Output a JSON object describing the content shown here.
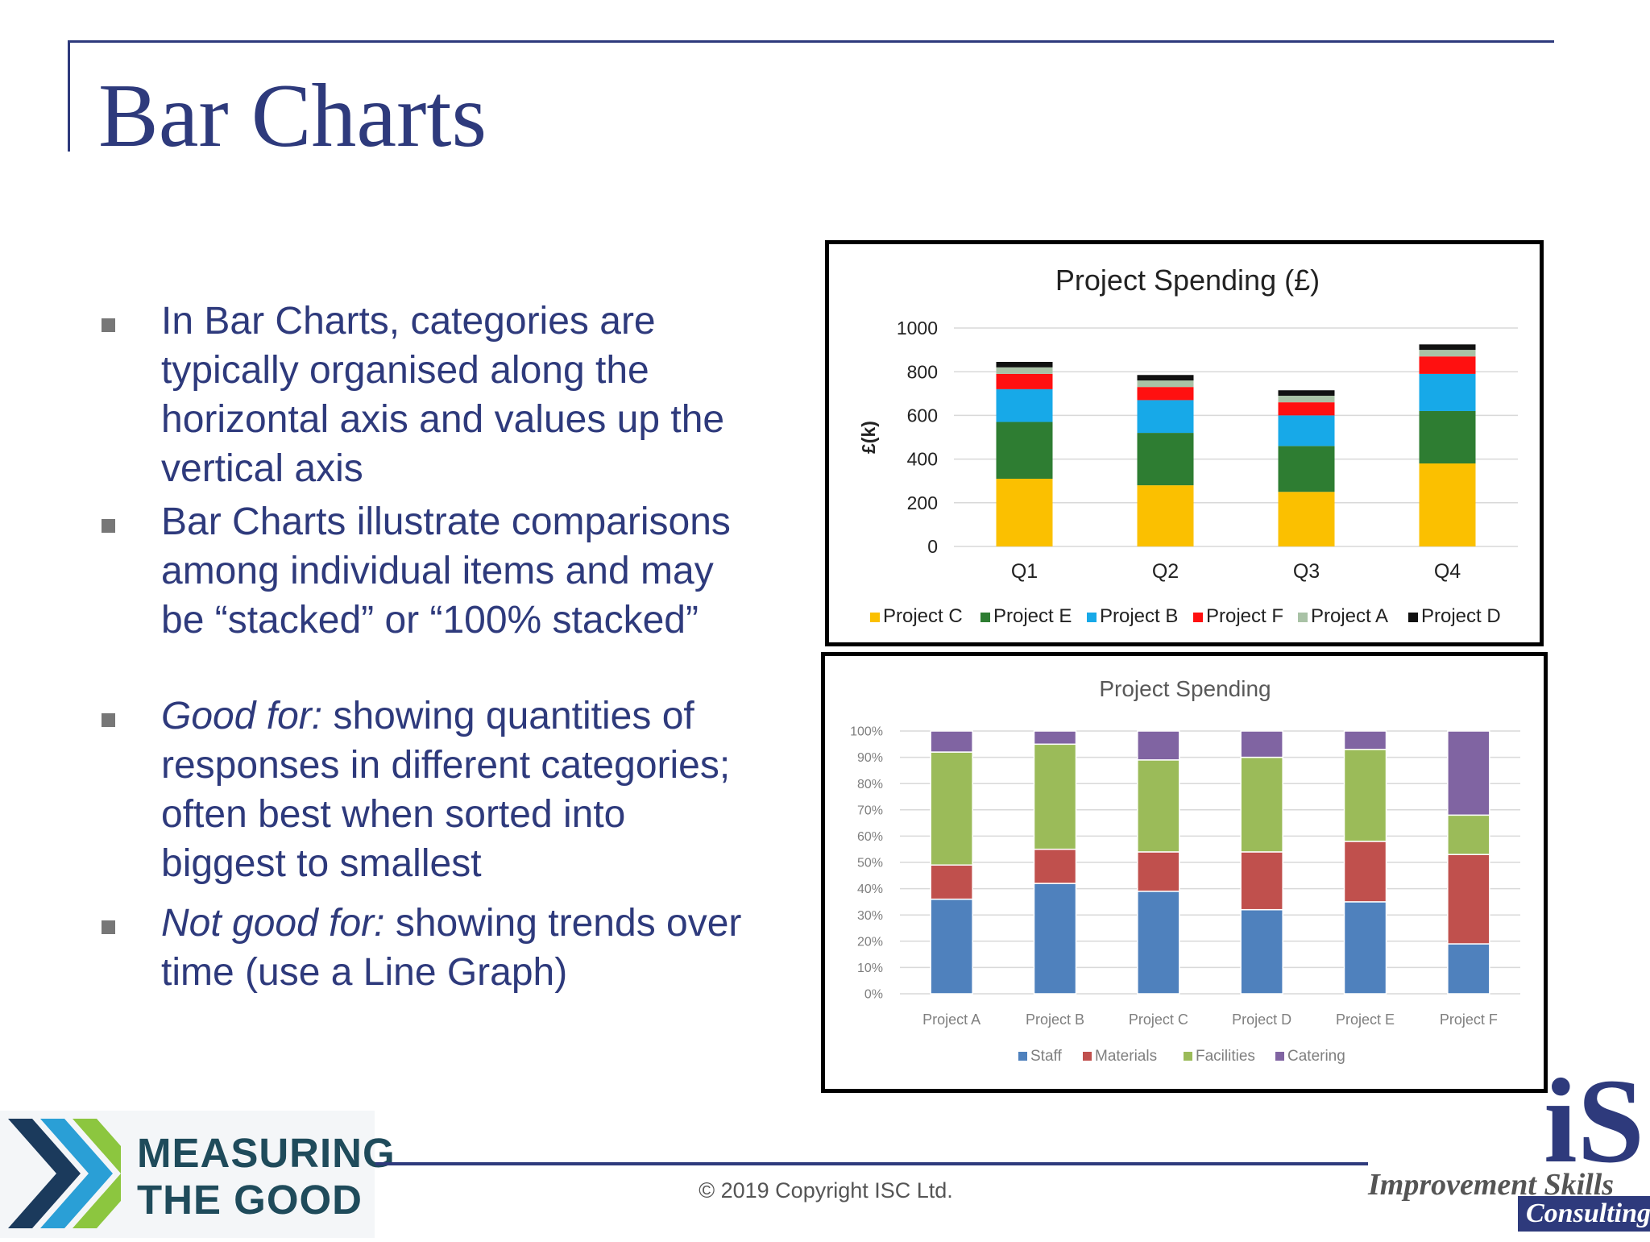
{
  "slide": {
    "title": "Bar Charts",
    "bullets": [
      {
        "lead": "",
        "text": "In Bar Charts, categories are typically organised along the horizontal axis and values up the vertical axis"
      },
      {
        "lead": "",
        "text": "Bar Charts illustrate comparisons among individual items and may be “stacked” or “100% stacked”"
      },
      {
        "lead": "Good for:",
        "text": " showing quantities of responses in different categories; often best when sorted into biggest to smallest"
      },
      {
        "lead": "Not good for:",
        "text": " showing trends over time (use a Line Graph)"
      }
    ]
  },
  "footer": {
    "copyright": "© 2019 Copyright ISC Ltd.",
    "logo_left": {
      "line1": "MEASURING",
      "line2": "THE GOOD",
      "colors": [
        "#1b3a5c",
        "#2a9fd6",
        "#8cc63f"
      ]
    },
    "logo_right": {
      "mark": "iS",
      "name": "Improvement Skills",
      "sub": "Consulting"
    }
  },
  "chart_data": [
    {
      "type": "bar",
      "stacked": true,
      "title": "Project Spending (£)",
      "xlabel": "",
      "ylabel": "£(k)",
      "categories": [
        "Q1",
        "Q2",
        "Q3",
        "Q4"
      ],
      "ylim": [
        0,
        1000
      ],
      "yticks": [
        "0",
        "200",
        "400",
        "600",
        "800",
        "1000"
      ],
      "grid": true,
      "legend": "bottom",
      "series": [
        {
          "name": "Project C",
          "color": "#fbc000",
          "values": [
            310,
            280,
            250,
            380
          ]
        },
        {
          "name": "Project E",
          "color": "#2e7d32",
          "values": [
            260,
            240,
            210,
            240
          ]
        },
        {
          "name": "Project B",
          "color": "#17a9e8",
          "values": [
            150,
            150,
            140,
            170
          ]
        },
        {
          "name": "Project F",
          "color": "#ff1010",
          "values": [
            70,
            60,
            60,
            80
          ]
        },
        {
          "name": "Project A",
          "color": "#a9c2a6",
          "values": [
            30,
            30,
            30,
            30
          ]
        },
        {
          "name": "Project D",
          "color": "#111111",
          "values": [
            25,
            25,
            25,
            25
          ]
        }
      ]
    },
    {
      "type": "bar",
      "stacked": "percent",
      "title": "Project Spending",
      "xlabel": "",
      "ylabel": "",
      "categories": [
        "Project A",
        "Project B",
        "Project C",
        "Project D",
        "Project E",
        "Project F"
      ],
      "ylim": [
        0,
        100
      ],
      "yticks": [
        "0%",
        "10%",
        "20%",
        "30%",
        "40%",
        "50%",
        "60%",
        "70%",
        "80%",
        "90%",
        "100%"
      ],
      "grid": true,
      "legend": "bottom",
      "series": [
        {
          "name": "Staff",
          "color": "#4f81bd",
          "values": [
            36,
            42,
            39,
            32,
            35,
            19
          ]
        },
        {
          "name": "Materials",
          "color": "#c0504d",
          "values": [
            13,
            13,
            15,
            22,
            23,
            34
          ]
        },
        {
          "name": "Facilities",
          "color": "#9bbb59",
          "values": [
            43,
            40,
            35,
            36,
            35,
            15
          ]
        },
        {
          "name": "Catering",
          "color": "#8064a2",
          "values": [
            8,
            5,
            11,
            10,
            7,
            32
          ]
        }
      ]
    }
  ]
}
